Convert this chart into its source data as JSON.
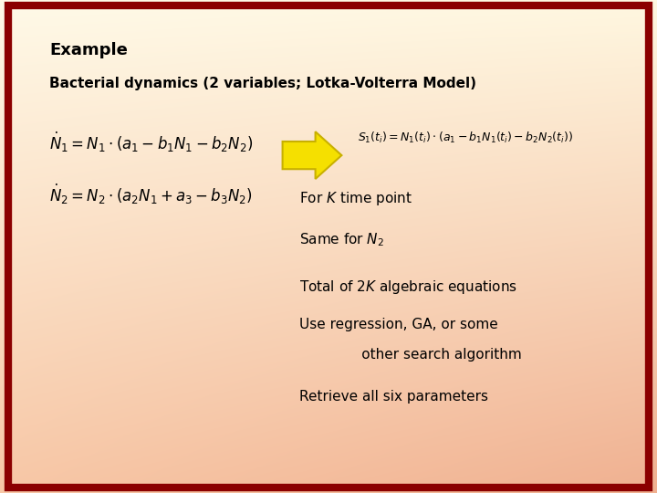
{
  "border_color": "#8b0000",
  "border_width": 6,
  "title": "Example",
  "subtitle": "Bacterial dynamics (2 variables; Lotka-Volterra Model)",
  "eq1_lhs": "$\\dot{N}_1 = N_1 \\cdot \\left(a_1 - b_1 N_1 - b_2 N_2\\right)$",
  "eq2_lhs": "$\\dot{N}_2 = N_2 \\cdot \\left(a_2 N_1 + a_3 - b_3 N_2\\right)$",
  "eq1_rhs": "$S_1(t_i) = N_1(t_i) \\cdot \\left(a_1 - b_1 N_1(t_i) - b_2 N_2(t_i)\\right)$",
  "arrow_color": "#f5e000",
  "arrow_edge_color": "#c8b000",
  "text_color": "#000000",
  "bullet1": "For $K$ time point",
  "bullet2": "Same for $N_2$",
  "bullet3": "Total of $2K$ algebraic equations",
  "bullet4_line1": "Use regression, GA, or some",
  "bullet4_line2": "              other search algorithm",
  "bullet5": "Retrieve all six parameters",
  "bg_color_topleft": "#fffae8",
  "bg_color_bottomright": "#f0b090",
  "figsize": [
    7.2,
    5.4
  ],
  "dpi": 100
}
